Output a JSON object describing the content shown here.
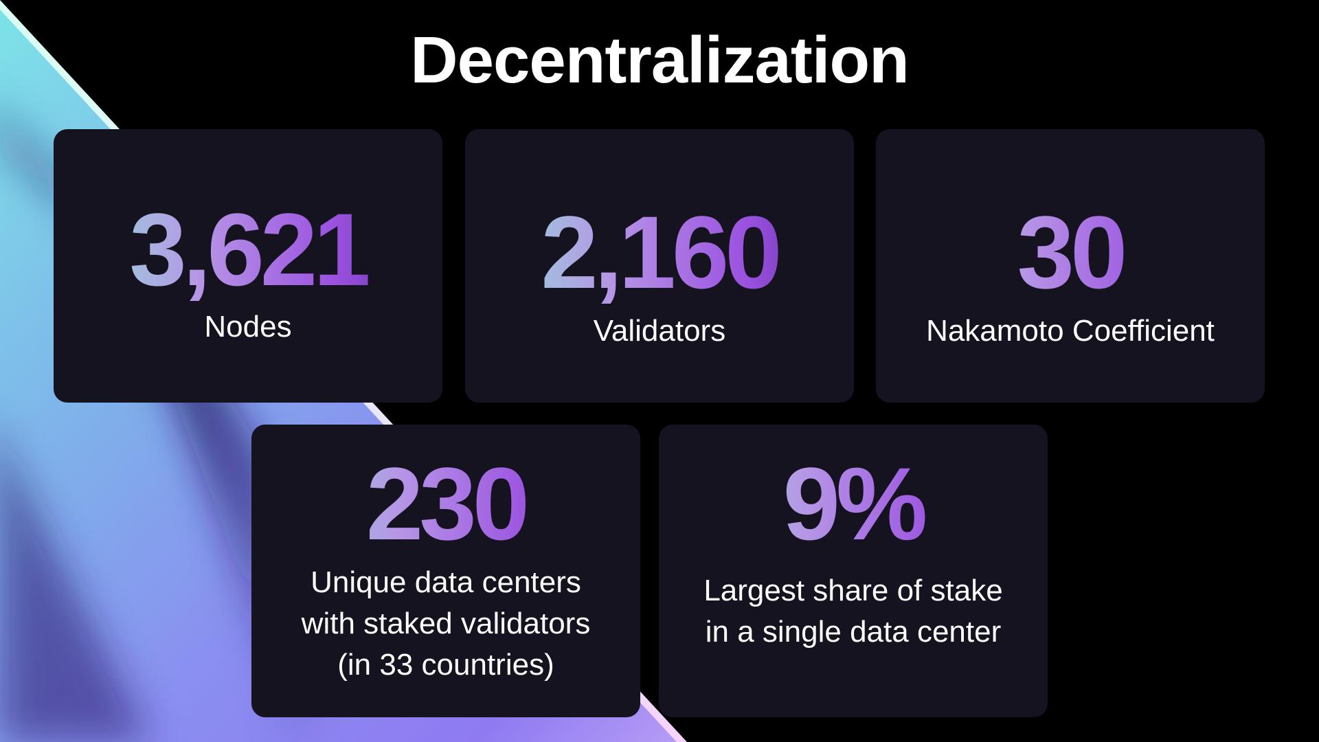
{
  "title": "Decentralization",
  "stats": [
    {
      "value": "3,621",
      "label": "Nodes"
    },
    {
      "value": "2,160",
      "label": "Validators"
    },
    {
      "value": "30",
      "label": "Nakamoto Coefficient"
    },
    {
      "value": "230",
      "label": "Unique data centers\nwith staked validators\n(in 33 countries)"
    },
    {
      "value": "9%",
      "label": "Largest share of stake\nin a single data center"
    }
  ],
  "colors": {
    "background": "#000000",
    "card": "#15131f",
    "text": "#ffffff",
    "gradient_start": "#8ee7d6",
    "gradient_mid": "#b695e6",
    "gradient_end": "#5a2a9c"
  }
}
